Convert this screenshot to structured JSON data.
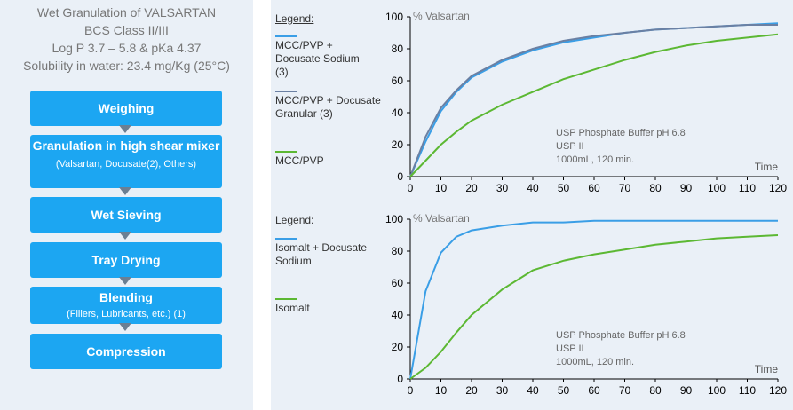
{
  "header": {
    "line1": "Wet Granulation of VALSARTAN",
    "line2": "BCS Class II/III",
    "line3": "Log P 3.7 – 5.8 & pKa 4.37",
    "line4": "Solubility in water: 23.4 mg/Kg (25°C)"
  },
  "process_steps": [
    {
      "label": "Weighing",
      "sub": ""
    },
    {
      "label": "Granulation in high shear mixer",
      "sub": "(Valsartan, Docusate(2), Others)"
    },
    {
      "label": "Wet Sieving",
      "sub": ""
    },
    {
      "label": "Tray Drying",
      "sub": ""
    },
    {
      "label": "Blending",
      "sub": "(Fillers, Lubricants, etc.) (1)"
    },
    {
      "label": "Compression",
      "sub": ""
    }
  ],
  "colors": {
    "blue": "#3a9ee6",
    "slate": "#6b80a3",
    "green": "#5cb833"
  },
  "chart_data": [
    {
      "type": "line",
      "legend_title": "Legend:",
      "ylabel": "% Valsartan",
      "xlabel": "Time",
      "ylim": [
        0,
        100
      ],
      "xlim": [
        0,
        120
      ],
      "xticks": [
        0,
        10,
        20,
        30,
        40,
        50,
        60,
        70,
        80,
        90,
        100,
        110,
        120
      ],
      "yticks": [
        0,
        20,
        40,
        60,
        80,
        100
      ],
      "annotation": [
        "USP Phosphate Buffer pH 6.8",
        "USP II",
        "1000mL, 120 min."
      ],
      "x": [
        0,
        5,
        10,
        15,
        20,
        30,
        40,
        50,
        60,
        70,
        80,
        90,
        100,
        110,
        120
      ],
      "series": [
        {
          "name": "MCC/PVP + Docusate Sodium (3)",
          "color": "#3a9ee6",
          "values": [
            0,
            22,
            41,
            53,
            62,
            72,
            79,
            84,
            87,
            90,
            92,
            93,
            94,
            95,
            96
          ]
        },
        {
          "name": "MCC/PVP + Docusate Granular (3)",
          "color": "#6b80a3",
          "values": [
            0,
            25,
            43,
            54,
            63,
            73,
            80,
            85,
            88,
            90,
            92,
            93,
            94,
            95,
            95
          ]
        },
        {
          "name": "MCC/PVP",
          "color": "#5cb833",
          "values": [
            0,
            10,
            20,
            28,
            35,
            45,
            53,
            61,
            67,
            73,
            78,
            82,
            85,
            87,
            89
          ]
        }
      ]
    },
    {
      "type": "line",
      "legend_title": "Legend:",
      "ylabel": "% Valsartan",
      "xlabel": "Time",
      "ylim": [
        0,
        100
      ],
      "xlim": [
        0,
        120
      ],
      "xticks": [
        0,
        10,
        20,
        30,
        40,
        50,
        60,
        70,
        80,
        90,
        100,
        110,
        120
      ],
      "yticks": [
        0,
        20,
        40,
        60,
        80,
        100
      ],
      "annotation": [
        "USP Phosphate Buffer pH 6.8",
        "USP II",
        "1000mL, 120 min."
      ],
      "x": [
        0,
        5,
        10,
        15,
        20,
        30,
        40,
        50,
        60,
        70,
        80,
        90,
        100,
        110,
        120
      ],
      "series": [
        {
          "name": "Isomalt + Docusate Sodium",
          "color": "#3a9ee6",
          "values": [
            0,
            55,
            79,
            89,
            93,
            96,
            98,
            98,
            99,
            99,
            99,
            99,
            99,
            99,
            99
          ]
        },
        {
          "name": "Isomalt",
          "color": "#5cb833",
          "values": [
            0,
            7,
            17,
            29,
            40,
            56,
            68,
            74,
            78,
            81,
            84,
            86,
            88,
            89,
            90
          ]
        }
      ]
    }
  ]
}
